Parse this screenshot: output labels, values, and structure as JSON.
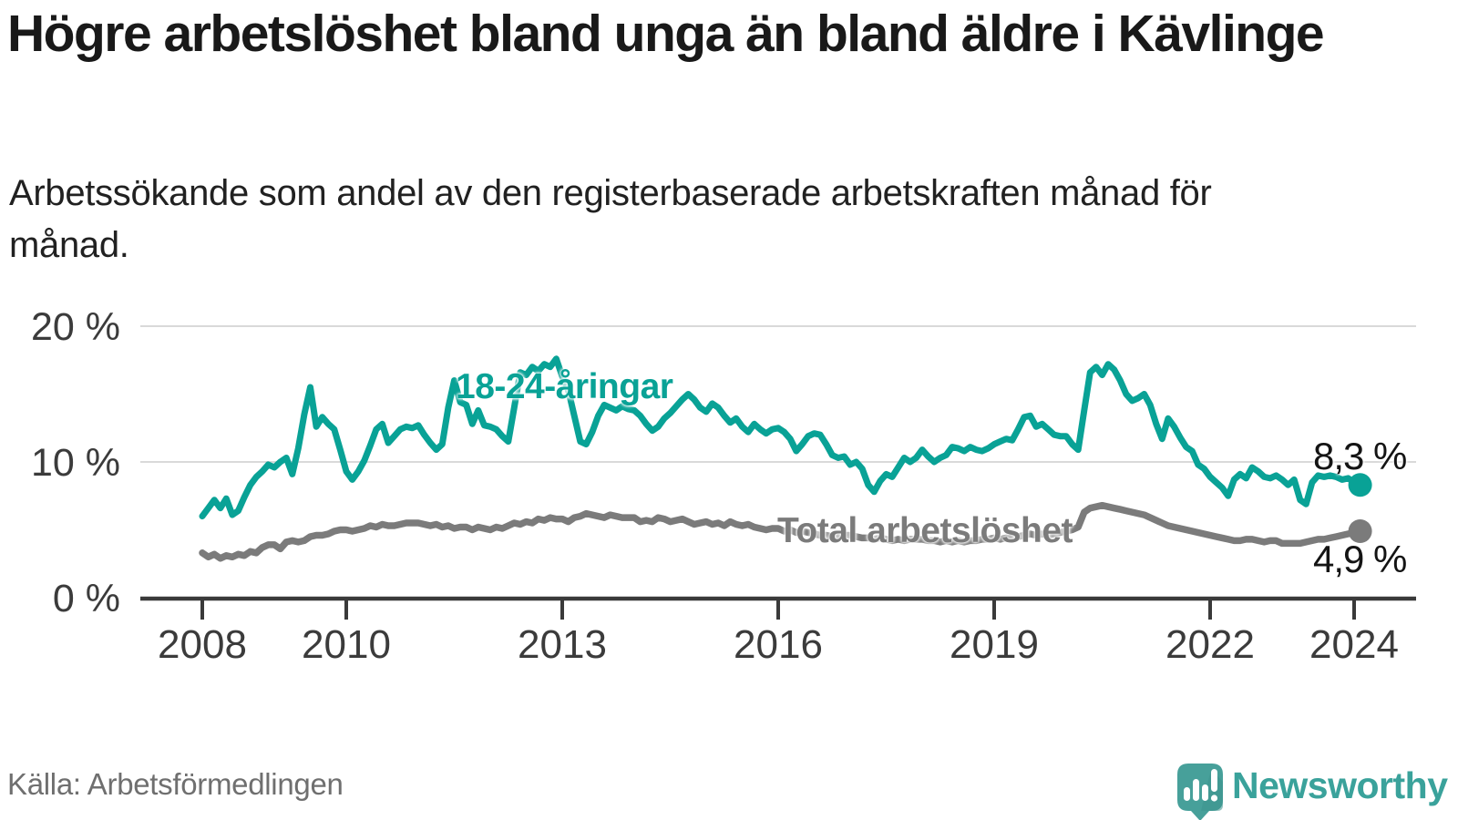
{
  "header": {
    "title": "Högre arbetslöshet bland unga än bland äldre i Kävlinge",
    "subtitle": "Arbetssökande som andel av den registerbaserade arbetskraften månad för månad."
  },
  "chart_data": {
    "type": "line",
    "title": "Högre arbetslöshet bland unga än bland äldre i Kävlinge",
    "frequency": "monthly",
    "x_start": {
      "year": 2008,
      "month": 1
    },
    "x_end": {
      "year": 2024,
      "month": 2
    },
    "x_axis": {
      "ticks": [
        "2008",
        "2010",
        "2013",
        "2016",
        "2019",
        "2022",
        "2024"
      ]
    },
    "y_axis": {
      "ticks": [
        {
          "label": "20 %",
          "value": 20
        },
        {
          "label": "10 %",
          "value": 10
        },
        {
          "label": "0 %",
          "value": 0
        }
      ],
      "range": [
        0,
        21.5
      ],
      "grid": true
    },
    "legend_position": "inline-labels",
    "series": [
      {
        "name": "18-24-åringar",
        "label": "18-24-åringar",
        "color": "#09a296",
        "end_label": "8,3 %",
        "last_value": 8.3,
        "values": [
          6.0,
          6.6,
          7.2,
          6.6,
          7.3,
          6.1,
          6.4,
          7.4,
          8.3,
          8.9,
          9.3,
          9.8,
          9.6,
          10.0,
          10.3,
          9.1,
          11.0,
          13.5,
          15.5,
          12.6,
          13.3,
          12.8,
          12.4,
          10.9,
          9.3,
          8.7,
          9.3,
          10.1,
          11.2,
          12.4,
          12.8,
          11.4,
          11.9,
          12.4,
          12.6,
          12.5,
          12.7,
          12.0,
          11.4,
          10.9,
          11.3,
          14.0,
          16.0,
          14.4,
          14.2,
          12.8,
          13.8,
          12.7,
          12.6,
          12.4,
          11.9,
          11.5,
          14.0,
          16.6,
          16.4,
          17.0,
          16.7,
          17.2,
          17.0,
          17.6,
          16.3,
          15.3,
          13.4,
          11.5,
          11.3,
          12.2,
          13.4,
          14.2,
          14.0,
          13.8,
          14.1,
          13.9,
          13.8,
          13.4,
          12.8,
          12.3,
          12.6,
          13.2,
          13.6,
          14.1,
          14.6,
          15.0,
          14.6,
          14.0,
          13.7,
          14.3,
          14.0,
          13.4,
          12.9,
          13.2,
          12.6,
          12.2,
          12.8,
          12.4,
          12.1,
          12.4,
          12.5,
          12.2,
          11.7,
          10.8,
          11.3,
          11.9,
          12.1,
          12.0,
          11.3,
          10.5,
          10.3,
          10.4,
          9.8,
          10.0,
          9.5,
          8.3,
          7.8,
          8.6,
          9.1,
          8.9,
          9.6,
          10.3,
          10.0,
          10.3,
          10.9,
          10.4,
          10.0,
          10.3,
          10.5,
          11.1,
          11.0,
          10.8,
          11.1,
          10.9,
          10.8,
          11.0,
          11.3,
          11.5,
          11.7,
          11.6,
          12.4,
          13.3,
          13.4,
          12.6,
          12.8,
          12.4,
          12.0,
          11.9,
          11.9,
          11.3,
          10.9,
          13.8,
          16.6,
          17.0,
          16.4,
          17.2,
          16.8,
          16.0,
          15.0,
          14.5,
          14.7,
          15.0,
          14.2,
          12.8,
          11.7,
          13.2,
          12.6,
          11.8,
          11.1,
          10.8,
          9.8,
          9.5,
          8.9,
          8.5,
          8.1,
          7.5,
          8.7,
          9.1,
          8.8,
          9.6,
          9.3,
          8.9,
          8.8,
          9.0,
          8.7,
          8.3,
          8.7,
          7.2,
          6.9,
          8.5,
          9.0,
          8.9,
          9.0,
          8.9,
          8.7,
          8.8,
          8.5,
          8.3
        ]
      },
      {
        "name": "Total arbetslöshet",
        "label": "Total arbetslöshet",
        "color": "#7b7b7b",
        "end_label": "4,9 %",
        "last_value": 4.9,
        "values": [
          3.3,
          3.0,
          3.2,
          2.9,
          3.1,
          3.0,
          3.2,
          3.1,
          3.4,
          3.3,
          3.7,
          3.9,
          3.9,
          3.6,
          4.1,
          4.2,
          4.1,
          4.2,
          4.5,
          4.6,
          4.6,
          4.7,
          4.9,
          5.0,
          5.0,
          4.9,
          5.0,
          5.1,
          5.3,
          5.2,
          5.4,
          5.3,
          5.3,
          5.4,
          5.5,
          5.5,
          5.5,
          5.4,
          5.3,
          5.4,
          5.2,
          5.3,
          5.1,
          5.2,
          5.2,
          5.0,
          5.2,
          5.1,
          5.0,
          5.2,
          5.1,
          5.3,
          5.5,
          5.4,
          5.6,
          5.5,
          5.8,
          5.7,
          5.9,
          5.8,
          5.8,
          5.6,
          5.9,
          6.0,
          6.2,
          6.1,
          6.0,
          5.9,
          6.1,
          6.0,
          5.9,
          5.9,
          5.9,
          5.6,
          5.7,
          5.6,
          5.9,
          5.8,
          5.6,
          5.7,
          5.8,
          5.6,
          5.4,
          5.5,
          5.6,
          5.4,
          5.5,
          5.3,
          5.6,
          5.4,
          5.3,
          5.4,
          5.2,
          5.1,
          5.0,
          5.1,
          5.1,
          4.9,
          5.0,
          4.8,
          4.9,
          4.8,
          4.7,
          4.6,
          4.6,
          4.5,
          4.6,
          4.6,
          4.6,
          4.5,
          4.4,
          4.4,
          4.3,
          4.4,
          4.3,
          4.2,
          4.3,
          4.2,
          4.3,
          4.3,
          4.3,
          4.2,
          4.2,
          4.1,
          4.2,
          4.1,
          4.2,
          4.1,
          4.2,
          4.2,
          4.3,
          4.3,
          4.4,
          4.3,
          4.4,
          4.4,
          4.5,
          4.6,
          4.7,
          4.6,
          4.7,
          4.6,
          4.7,
          4.8,
          4.9,
          5.0,
          5.2,
          6.3,
          6.6,
          6.7,
          6.8,
          6.7,
          6.6,
          6.5,
          6.4,
          6.3,
          6.2,
          6.1,
          5.9,
          5.7,
          5.5,
          5.3,
          5.2,
          5.1,
          5.0,
          4.9,
          4.8,
          4.7,
          4.6,
          4.5,
          4.4,
          4.3,
          4.2,
          4.2,
          4.3,
          4.3,
          4.2,
          4.1,
          4.2,
          4.2,
          4.0,
          4.0,
          4.0,
          4.0,
          4.1,
          4.2,
          4.3,
          4.3,
          4.4,
          4.5,
          4.6,
          4.7,
          4.8,
          4.9
        ]
      }
    ]
  },
  "footer": {
    "source": "Källa: Arbetsförmedlingen",
    "brand": "Newsworthy",
    "brand_color": "#3aa29b"
  }
}
